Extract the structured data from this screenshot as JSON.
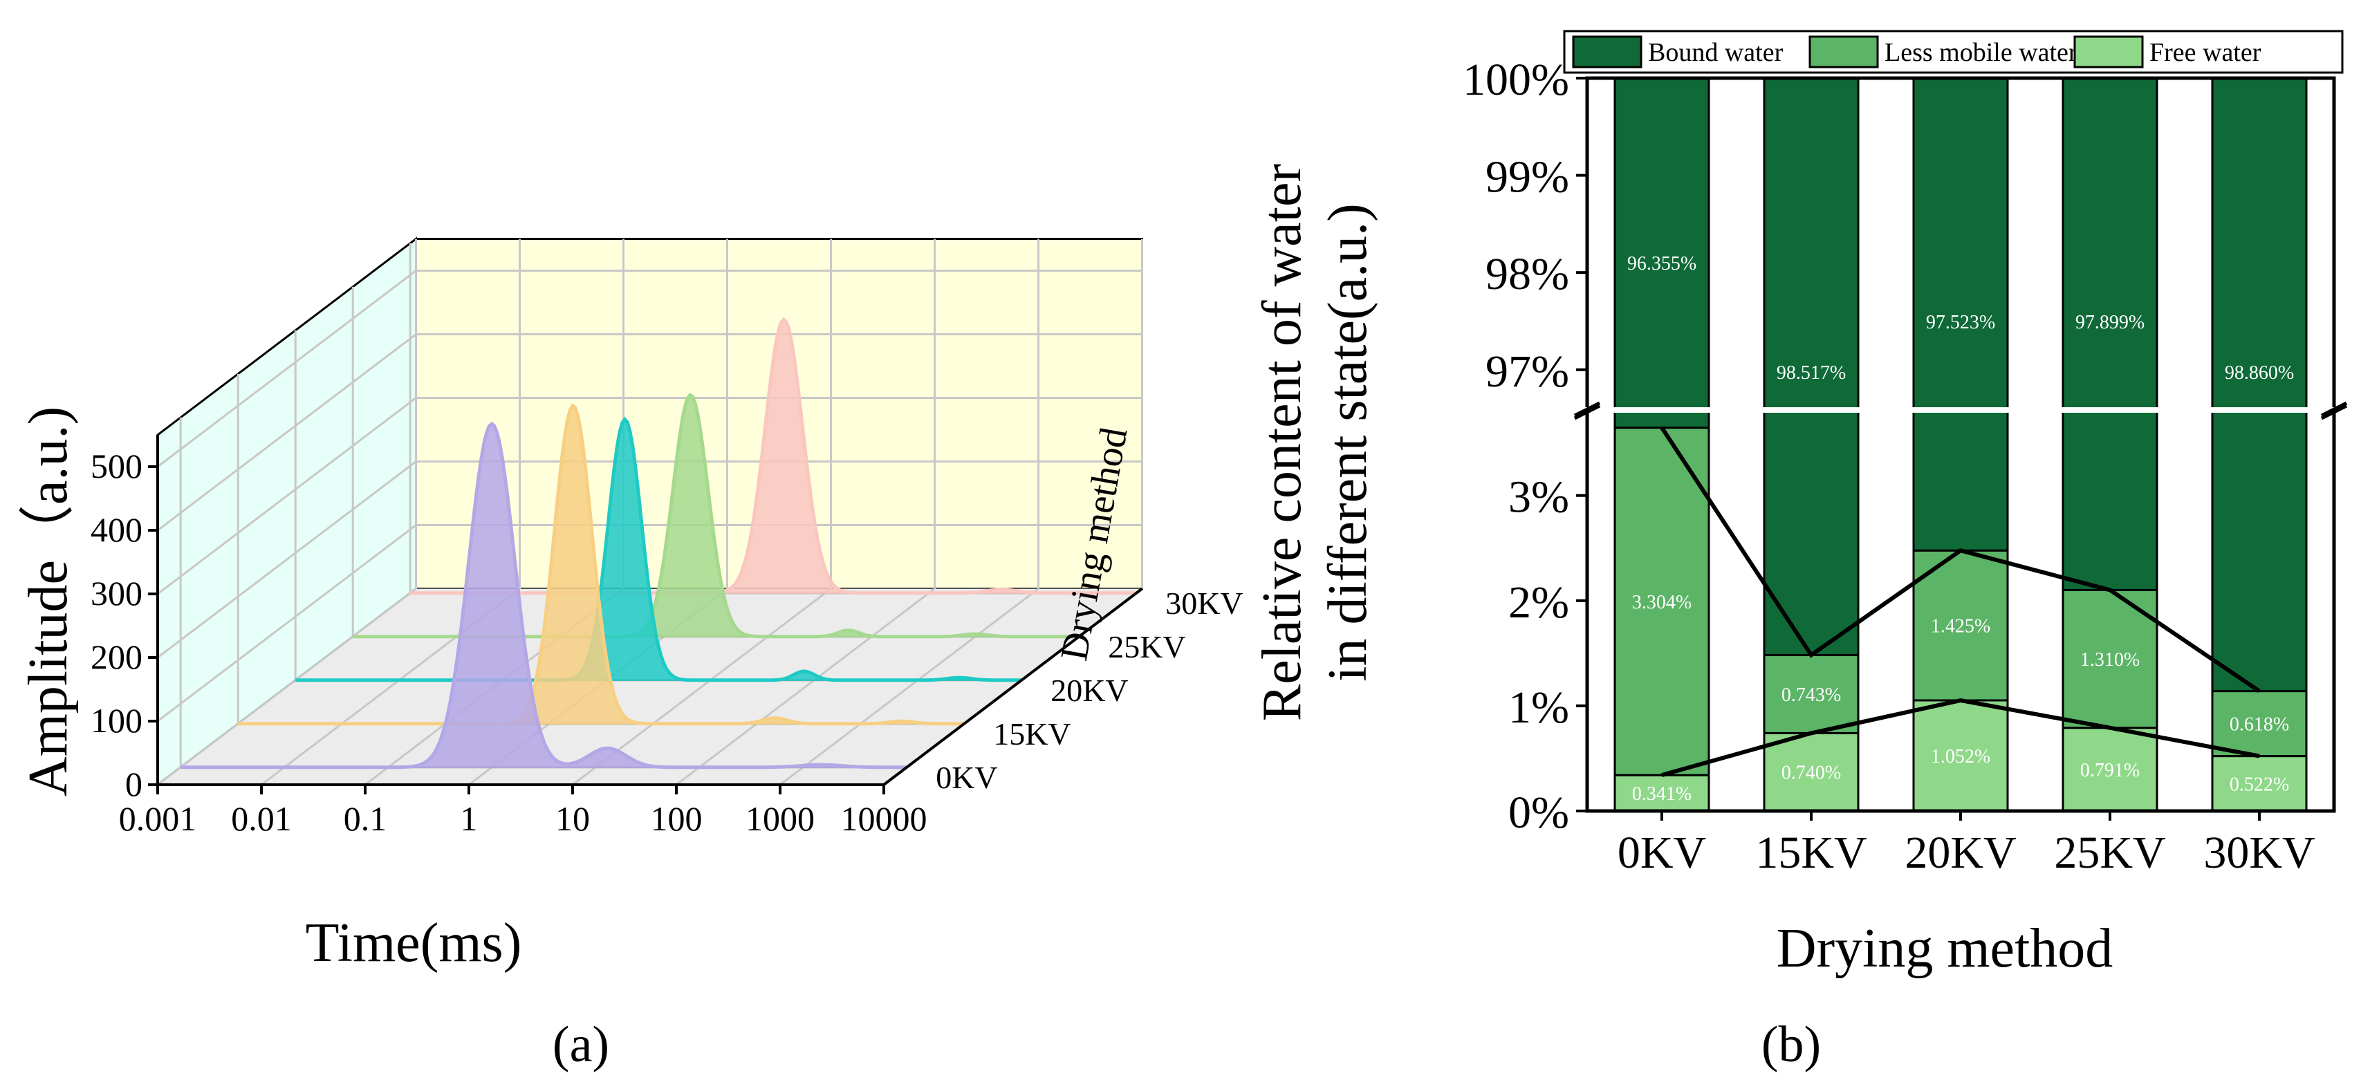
{
  "panel_a": {
    "label": "(a)",
    "chart_data": {
      "type": "area",
      "xlabel": "Time(ms)",
      "ylabel": "Amplitude（a.u.)",
      "zlabel": "Drying method",
      "x_scale": "log",
      "x_ticks": [
        "0.001",
        "0.01",
        "0.1",
        "1",
        "10",
        "100",
        "1000",
        "10000"
      ],
      "y_ticks": [
        "0",
        "100",
        "200",
        "300",
        "400",
        "500"
      ],
      "ylim": [
        0,
        550
      ],
      "categories": [
        "0KV",
        "15KV",
        "20KV",
        "25KV",
        "30KV"
      ],
      "series": [
        {
          "name": "0KV",
          "color": "#b4a7e6",
          "peaks": [
            {
              "x": 1.0,
              "y": 540,
              "w": 0.22
            },
            {
              "x": 13,
              "y": 30,
              "w": 0.18
            },
            {
              "x": 1500,
              "y": 4,
              "w": 0.2
            }
          ]
        },
        {
          "name": "15KV",
          "color": "#f7cf82",
          "peaks": [
            {
              "x": 1.7,
              "y": 500,
              "w": 0.18
            },
            {
              "x": 150,
              "y": 9,
              "w": 0.12
            },
            {
              "x": 2500,
              "y": 4,
              "w": 0.12
            }
          ]
        },
        {
          "name": "20KV",
          "color": "#1fcac6",
          "peaks": [
            {
              "x": 1.5,
              "y": 410,
              "w": 0.16
            },
            {
              "x": 80,
              "y": 14,
              "w": 0.1
            },
            {
              "x": 2500,
              "y": 4,
              "w": 0.12
            }
          ]
        },
        {
          "name": "25KV",
          "color": "#a5d98e",
          "peaks": [
            {
              "x": 1.8,
              "y": 380,
              "w": 0.17
            },
            {
              "x": 60,
              "y": 10,
              "w": 0.1
            },
            {
              "x": 1000,
              "y": 4,
              "w": 0.12
            }
          ]
        },
        {
          "name": "30KV",
          "color": "#f9c6c0",
          "peaks": [
            {
              "x": 4.0,
              "y": 430,
              "w": 0.18
            },
            {
              "x": 500,
              "y": 6,
              "w": 0.14
            }
          ]
        }
      ],
      "colors": {
        "back_wall": "#ffffdc",
        "side_wall": "#e6fff8",
        "floor": "#ececec",
        "grid": "#c8c8c8"
      }
    }
  },
  "panel_b": {
    "label": "(b)",
    "chart_data": {
      "type": "bar",
      "stacked": true,
      "xlabel": "Drying method",
      "ylabel_line1": "Relative content of water",
      "ylabel_line2": "in different state(a.u.)",
      "categories": [
        "0KV",
        "15KV",
        "20KV",
        "25KV",
        "30KV"
      ],
      "axis_break": {
        "lower": [
          0,
          3.8
        ],
        "upper": [
          96.6,
          100
        ]
      },
      "y_ticks_lower": [
        "0%",
        "1%",
        "2%",
        "3%"
      ],
      "y_ticks_upper": [
        "97%",
        "98%",
        "99%",
        "100%"
      ],
      "series": [
        {
          "name": "Free water",
          "color": "#8fd88a",
          "values": [
            0.341,
            0.74,
            1.052,
            0.791,
            0.522
          ],
          "labels": [
            "0.341%",
            "0.740%",
            "1.052%",
            "0.791%",
            "0.522%"
          ]
        },
        {
          "name": "Less mobile water",
          "color": "#5cb466",
          "values": [
            3.304,
            0.743,
            1.425,
            1.31,
            0.618
          ],
          "labels": [
            "3.304%",
            "0.743%",
            "1.425%",
            "1.310%",
            "0.618%"
          ]
        },
        {
          "name": "Bound water",
          "color": "#0f6a38",
          "values": [
            96.355,
            98.517,
            97.523,
            97.899,
            98.86
          ],
          "labels": [
            "96.355%",
            "98.517%",
            "97.523%",
            "97.899%",
            "98.860%"
          ]
        }
      ],
      "legend": {
        "position": "top",
        "items": [
          "Bound water",
          "Less mobile water",
          "Free water"
        ]
      }
    }
  }
}
